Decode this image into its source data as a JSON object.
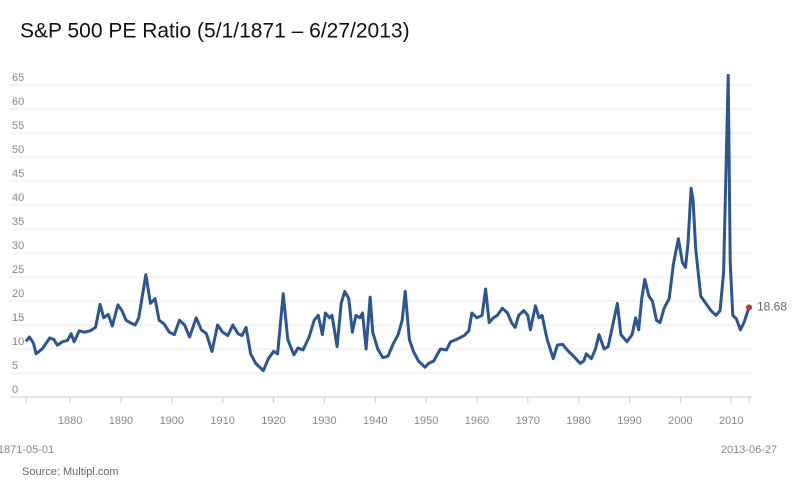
{
  "chart_data": {
    "type": "line",
    "title": "S&P 500 PE Ratio (5/1/1871 – 6/27/2013)",
    "source": "Source:  Multipl.com",
    "x": [
      1871.33,
      1872.0,
      1872.8,
      1873.3,
      1874.5,
      1876.0,
      1876.8,
      1877.5,
      1878.5,
      1879.5,
      1880.2,
      1880.8,
      1881.8,
      1882.8,
      1884.0,
      1885.0,
      1885.9,
      1886.6,
      1887.5,
      1888.3,
      1889.4,
      1890.2,
      1891.0,
      1891.8,
      1892.8,
      1893.5,
      1894.9,
      1895.8,
      1896.7,
      1897.5,
      1898.5,
      1899.5,
      1900.5,
      1901.5,
      1902.5,
      1903.5,
      1904.8,
      1905.8,
      1906.8,
      1907.9,
      1909.0,
      1910.0,
      1911.0,
      1912.0,
      1913.0,
      1913.8,
      1914.6,
      1915.5,
      1916.5,
      1918.0,
      1919.0,
      1920.0,
      1920.8,
      1921.9,
      1922.8,
      1924.0,
      1924.8,
      1925.8,
      1927.0,
      1928.0,
      1928.8,
      1929.6,
      1930.2,
      1931.0,
      1931.5,
      1932.5,
      1933.3,
      1934.0,
      1934.8,
      1935.5,
      1936.2,
      1937.0,
      1937.5,
      1938.2,
      1939.0,
      1939.5,
      1940.5,
      1941.5,
      1942.5,
      1943.5,
      1944.5,
      1945.3,
      1945.9,
      1946.7,
      1947.5,
      1948.5,
      1949.8,
      1950.5,
      1951.5,
      1952.8,
      1954.0,
      1954.8,
      1956.0,
      1957.5,
      1958.4,
      1959.0,
      1960.0,
      1961.0,
      1961.7,
      1962.4,
      1963.2,
      1964.0,
      1965.0,
      1966.0,
      1966.8,
      1967.5,
      1968.2,
      1969.2,
      1970.0,
      1970.5,
      1971.5,
      1972.2,
      1972.8,
      1973.8,
      1975.0,
      1975.8,
      1976.8,
      1978.0,
      1979.0,
      1980.3,
      1981.0,
      1981.5,
      1982.5,
      1983.3,
      1984.0,
      1985.0,
      1985.8,
      1986.8,
      1987.6,
      1988.3,
      1989.5,
      1990.5,
      1991.2,
      1991.8,
      1992.4,
      1993.0,
      1993.8,
      1994.5,
      1995.3,
      1996.0,
      1996.8,
      1997.8,
      1998.6,
      1999.6,
      2000.4,
      2001.0,
      2001.5,
      2002.1,
      2002.5,
      2003.0,
      2004.0,
      2005.0,
      2006.0,
      2007.0,
      2007.8,
      2008.5,
      2009.4,
      2009.8,
      2010.3,
      2011.0,
      2011.8,
      2012.5,
      2013.49
    ],
    "series": [
      {
        "name": "S&P 500 PE Ratio",
        "color": "#2d5592",
        "values": [
          11.6,
          12.5,
          11.2,
          9.0,
          10.0,
          12.3,
          12.0,
          10.8,
          11.5,
          11.8,
          13.2,
          11.5,
          13.8,
          13.5,
          13.8,
          14.5,
          19.3,
          16.5,
          17.2,
          14.8,
          19.2,
          18.0,
          16.0,
          15.5,
          15.0,
          16.5,
          25.5,
          19.5,
          20.5,
          16.0,
          15.2,
          13.5,
          13.0,
          16.0,
          15.0,
          12.5,
          16.5,
          14.0,
          13.2,
          9.5,
          15.0,
          13.5,
          12.8,
          15.0,
          13.2,
          12.8,
          14.5,
          9.0,
          7.0,
          5.5,
          8.0,
          9.5,
          9.0,
          21.5,
          12.0,
          8.8,
          10.2,
          9.8,
          12.5,
          16.0,
          17.0,
          13.0,
          17.5,
          16.5,
          17.0,
          10.5,
          19.5,
          22.0,
          20.5,
          13.5,
          17.0,
          16.5,
          17.5,
          10.0,
          20.8,
          13.5,
          10.0,
          8.2,
          8.5,
          11.0,
          13.0,
          16.0,
          22.0,
          12.0,
          9.5,
          7.5,
          6.2,
          7.0,
          7.5,
          10.0,
          9.8,
          11.5,
          12.0,
          12.8,
          13.8,
          17.5,
          16.5,
          17.0,
          22.5,
          15.5,
          16.5,
          17.0,
          18.5,
          17.5,
          15.5,
          14.5,
          17.0,
          18.0,
          17.0,
          14.0,
          19.0,
          16.5,
          17.0,
          12.0,
          8.0,
          10.8,
          11.0,
          9.5,
          8.5,
          7.0,
          7.5,
          9.0,
          8.0,
          10.0,
          13.0,
          10.0,
          10.5,
          15.5,
          19.5,
          13.0,
          11.5,
          13.0,
          16.5,
          14.0,
          20.5,
          24.5,
          21.0,
          20.0,
          16.0,
          15.5,
          18.5,
          20.5,
          27.5,
          33.0,
          28.0,
          27.0,
          32.0,
          43.5,
          41.0,
          31.0,
          21.0,
          19.5,
          18.0,
          17.0,
          18.0,
          26.0,
          67.0,
          28.0,
          17.0,
          16.3,
          14.0,
          15.5,
          18.68
        ]
      }
    ],
    "end_marker_color": "#c0392b",
    "xlim": [
      1871.33,
      2013.49
    ],
    "xticks": [
      {
        "value": 1871.33,
        "label": "1871-05-01"
      },
      1880,
      1890,
      1900,
      1910,
      1920,
      1930,
      1940,
      1950,
      1960,
      1970,
      1980,
      1990,
      2000,
      2010,
      {
        "value": 2013.49,
        "label": "2013-06-27"
      }
    ],
    "ylim": [
      0,
      67
    ],
    "yticks": [
      0,
      5,
      10,
      15,
      20,
      25,
      30,
      35,
      40,
      45,
      50,
      55,
      60,
      65
    ],
    "grid": true
  }
}
